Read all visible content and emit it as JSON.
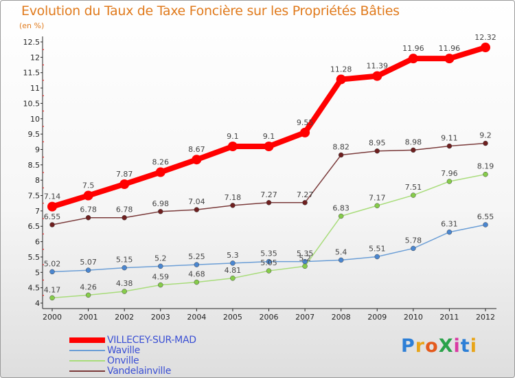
{
  "title": "Evolution du Taux de Taxe Foncière sur les Propriétés Bâties",
  "subtitle": "(en %)",
  "logo": {
    "text": "ProXiti",
    "letters": [
      {
        "ch": "P",
        "color": "#2d7fd6"
      },
      {
        "ch": "r",
        "color": "#e8a51a"
      },
      {
        "ch": "o",
        "color": "#e45a1c"
      },
      {
        "ch": "X",
        "color": "#2aa24a"
      },
      {
        "ch": "i",
        "color": "#d93aa3"
      },
      {
        "ch": "t",
        "color": "#2d7fd6"
      },
      {
        "ch": "i",
        "color": "#e8a51a"
      }
    ]
  },
  "chart_data": {
    "type": "line",
    "title": "Evolution du Taux de Taxe Foncière sur les Propriétés Bâties",
    "ylabel": "(en %)",
    "xlabel": "",
    "ylim": [
      4,
      12.5
    ],
    "ytick_step": 0.5,
    "yticks": [
      "4",
      "4.5",
      "5",
      "5.5",
      "6",
      "6.5",
      "7",
      "7.5",
      "8",
      "8.5",
      "9",
      "9.5",
      "10",
      "10.5",
      "11",
      "11.5",
      "12",
      "12.5"
    ],
    "categories": [
      "2000",
      "2001",
      "2002",
      "2003",
      "2004",
      "2005",
      "2006",
      "2007",
      "2008",
      "2009",
      "2010",
      "2011",
      "2012"
    ],
    "grid": false,
    "legend_position": "bottom-left",
    "series": [
      {
        "name": "VILLECEY-SUR-MAD",
        "color": "#ff0000",
        "marker_color": "#ff0000",
        "emphasis": true,
        "values": [
          7.14,
          7.5,
          7.87,
          8.26,
          8.67,
          9.1,
          9.1,
          9.55,
          11.28,
          11.39,
          11.96,
          11.96,
          12.32
        ],
        "labels": [
          "7.14",
          "7.5",
          "7.87",
          "8.26",
          "8.67",
          "9.1",
          "9.1",
          "9.55",
          "11.28",
          "11.39",
          "11.96",
          "11.96",
          "12.32"
        ]
      },
      {
        "name": "Waville",
        "color": "#6b9ed6",
        "marker_color": "#4a86d0",
        "emphasis": false,
        "values": [
          5.02,
          5.07,
          5.15,
          5.2,
          5.25,
          5.3,
          5.35,
          5.35,
          5.4,
          5.51,
          5.78,
          6.31,
          6.55
        ],
        "labels": [
          "5.02",
          "5.07",
          "5.15",
          "5.2",
          "5.25",
          "5.3",
          "5.35",
          "5.35",
          "5.4",
          "5.51",
          "5.78",
          "6.31",
          "6.55"
        ]
      },
      {
        "name": "Onville",
        "color": "#a8dc7a",
        "marker_color": "#86cc4a",
        "emphasis": false,
        "values": [
          4.17,
          4.26,
          4.38,
          4.59,
          4.68,
          4.81,
          5.05,
          5.2,
          6.83,
          7.17,
          7.51,
          7.96,
          8.19
        ],
        "labels": [
          "4.17",
          "4.26",
          "4.38",
          "4.59",
          "4.68",
          "4.81",
          "5.05",
          "5.2",
          "6.83",
          "7.17",
          "7.51",
          "7.96",
          "8.19"
        ]
      },
      {
        "name": "Vandelainville",
        "color": "#7a3a3a",
        "marker_color": "#6e1f1f",
        "emphasis": false,
        "values": [
          6.55,
          6.78,
          6.78,
          6.98,
          7.04,
          7.18,
          7.27,
          7.27,
          8.82,
          8.95,
          8.98,
          9.11,
          9.2
        ],
        "labels": [
          "6.55",
          "6.78",
          "6.78",
          "6.98",
          "7.04",
          "7.18",
          "7.27",
          "7.27",
          "8.82",
          "8.95",
          "8.98",
          "9.11",
          "9.2"
        ]
      }
    ]
  }
}
